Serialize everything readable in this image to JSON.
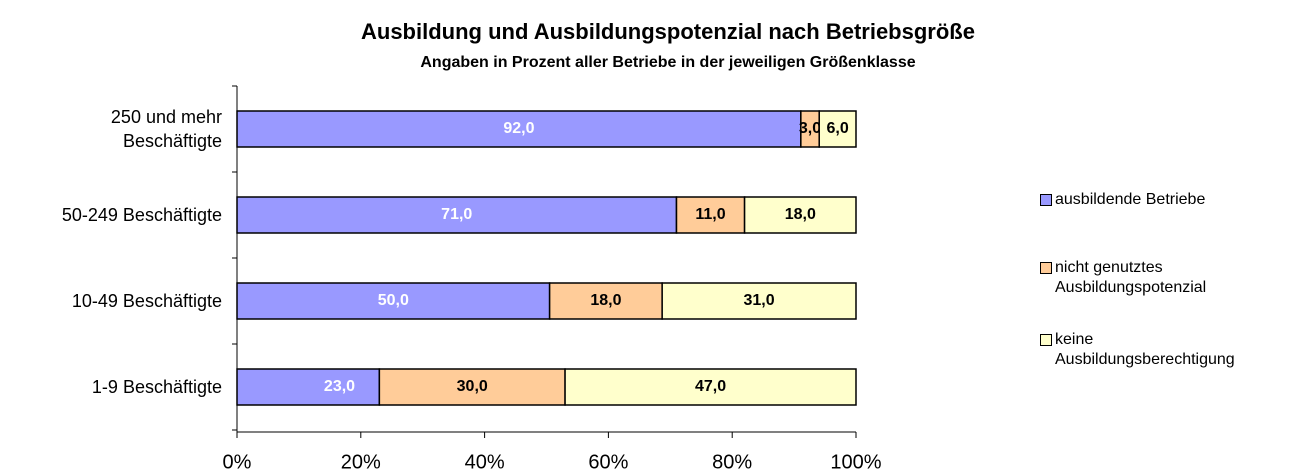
{
  "chart_data": {
    "type": "bar",
    "orientation": "horizontal",
    "stacking": "percent",
    "title": "Ausbildung und Ausbildungspotenzial nach Betriebsgröße",
    "subtitle": "Angaben in Prozent aller Betriebe in der jeweiligen Größenklasse",
    "categories": [
      "250 und mehr Beschäftigte",
      "50-249 Beschäftigte",
      "10-49 Beschäftigte",
      "1-9 Beschäftigte"
    ],
    "series": [
      {
        "name": "ausbildende Betriebe",
        "color": "#9999ff",
        "label_color": "#ffffff",
        "values": [
          92,
          71,
          50,
          23
        ],
        "value_labels": [
          "92,0",
          "71,0",
          "50,0",
          "23,0"
        ]
      },
      {
        "name": "nicht genutztes Ausbildungspotenzial",
        "color": "#ffcc99",
        "label_color": "#000000",
        "values": [
          3,
          11,
          18,
          30
        ],
        "value_labels": [
          "3,0",
          "11,0",
          "18,0",
          "30,0"
        ]
      },
      {
        "name": "keine Ausbildungsberechtigung",
        "color": "#ffffcc",
        "label_color": "#000000",
        "values": [
          6,
          18,
          31,
          47
        ],
        "value_labels": [
          "6,0",
          "18,0",
          "31,0",
          "47,0"
        ]
      }
    ],
    "xlim": [
      0,
      100
    ],
    "xticks": [
      {
        "value": 0,
        "label": "0%"
      },
      {
        "value": 20,
        "label": "20%"
      },
      {
        "value": 40,
        "label": "40%"
      },
      {
        "value": 60,
        "label": "60%"
      },
      {
        "value": 80,
        "label": "80%"
      },
      {
        "value": 100,
        "label": "100%"
      }
    ],
    "grid": false,
    "legend": "right"
  }
}
